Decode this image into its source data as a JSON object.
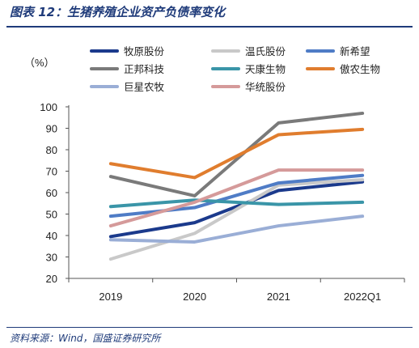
{
  "header": {
    "title": "图表 12：生猪养殖企业资产负债率变化"
  },
  "footer": {
    "source": "资料来源：Wind，国盛证券研究所"
  },
  "chart_data": {
    "type": "line",
    "title": "",
    "ylabel": "（%）",
    "xlabel": "",
    "categories": [
      "2019",
      "2020",
      "2021",
      "2022Q1"
    ],
    "ylim": [
      20,
      100
    ],
    "yticks": [
      20,
      30,
      40,
      50,
      60,
      70,
      80,
      90,
      100
    ],
    "grid": false,
    "legend_position": "top",
    "series": [
      {
        "name": "牧原股份",
        "color": "#1b3a8c",
        "values": [
          39.5,
          46,
          61,
          65
        ]
      },
      {
        "name": "温氏股份",
        "color": "#c9c9c9",
        "values": [
          29,
          41,
          63.5,
          66
        ]
      },
      {
        "name": "新希望",
        "color": "#4f7cc6",
        "values": [
          49,
          53,
          64.5,
          68
        ]
      },
      {
        "name": "正邦科技",
        "color": "#7a7a7a",
        "values": [
          67.5,
          58.5,
          92.5,
          97
        ]
      },
      {
        "name": "天康生物",
        "color": "#3a95a8",
        "values": [
          53.5,
          56.5,
          54.5,
          55.5
        ]
      },
      {
        "name": "傲农生物",
        "color": "#e07d2e",
        "values": [
          73.5,
          67,
          87,
          89.5
        ]
      },
      {
        "name": "巨星农牧",
        "color": "#9aaed6",
        "values": [
          38,
          37,
          44.5,
          49
        ]
      },
      {
        "name": "华统股份",
        "color": "#d59a9a",
        "values": [
          44.5,
          55.5,
          70.5,
          70.5
        ]
      }
    ]
  }
}
